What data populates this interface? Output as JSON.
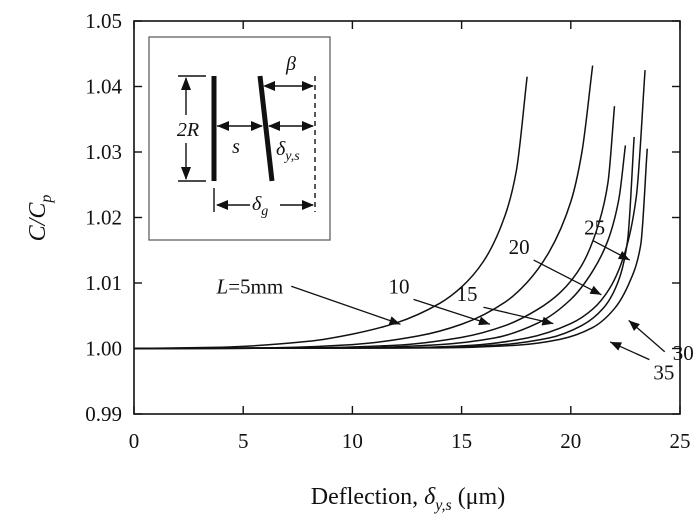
{
  "chart_data": {
    "type": "line",
    "xlabel": {
      "main": "Deflection, ",
      "sym": "δ",
      "sub": "y,s",
      "unit": " (μm)"
    },
    "ylabel": {
      "main": "C/C",
      "sub": "p"
    },
    "xlim": [
      0,
      25
    ],
    "ylim": [
      0.99,
      1.05
    ],
    "xticks": [
      "0",
      "5",
      "10",
      "15",
      "20",
      "25"
    ],
    "yticks": [
      "0.99",
      "1.00",
      "1.01",
      "1.02",
      "1.03",
      "1.04",
      "1.05"
    ],
    "grid": false,
    "series": [
      {
        "label": "L=5mm",
        "x": [
          0,
          4,
          8,
          10,
          12,
          14,
          15,
          16,
          17,
          17.5,
          18.0
        ],
        "y": [
          1.0,
          1.0002,
          1.0011,
          1.0022,
          1.0039,
          1.0069,
          1.0094,
          1.0133,
          1.0204,
          1.027,
          1.0415
        ]
      },
      {
        "label": "10",
        "x": [
          0,
          6,
          10,
          13,
          15,
          17,
          18,
          19,
          20,
          20.5,
          21.0
        ],
        "y": [
          1.0,
          1.0001,
          1.0006,
          1.0019,
          1.0037,
          1.0071,
          1.0101,
          1.0147,
          1.0224,
          1.0298,
          1.0432
        ]
      },
      {
        "label": "15",
        "x": [
          0,
          8,
          12,
          15,
          17,
          18.5,
          19.5,
          20.5,
          21.3,
          21.7,
          22.0
        ],
        "y": [
          1.0,
          1.0001,
          1.0005,
          1.0017,
          1.0035,
          1.006,
          1.0085,
          1.0127,
          1.0193,
          1.0253,
          1.037
        ]
      },
      {
        "label": "20",
        "x": [
          0,
          10,
          14,
          16.5,
          18.5,
          20,
          21,
          21.7,
          22.2,
          22.5
        ],
        "y": [
          1.0,
          1.0001,
          1.0006,
          1.0016,
          1.0039,
          1.0075,
          1.0118,
          1.0165,
          1.0228,
          1.031
        ]
      },
      {
        "label": "25",
        "x": [
          0,
          12,
          15.5,
          18,
          20,
          21,
          21.8,
          22.5,
          23.0,
          23.4
        ],
        "y": [
          1.0,
          1.0001,
          1.0005,
          1.0016,
          1.0038,
          1.006,
          1.0093,
          1.0149,
          1.0232,
          1.0425
        ]
      },
      {
        "label": "30",
        "x": [
          0,
          13,
          16.5,
          19,
          20.5,
          21.5,
          22.2,
          22.6,
          22.9
        ],
        "y": [
          1.0,
          1.0001,
          1.0005,
          1.0016,
          1.0035,
          1.0062,
          1.0105,
          1.0165,
          1.0323
        ]
      },
      {
        "label": "35",
        "x": [
          0,
          14,
          17.5,
          19.5,
          21,
          22,
          22.7,
          23.2,
          23.5
        ],
        "y": [
          1.0,
          1.0001,
          1.0005,
          1.0014,
          1.0032,
          1.0061,
          1.0102,
          1.0158,
          1.0305
        ]
      }
    ],
    "annotations": [
      {
        "text": "L=5mm",
        "ref": "series_0",
        "tail": [
          7.2,
          1.0095
        ],
        "head": [
          12.2,
          1.0037
        ]
      },
      {
        "text": "10",
        "ref": "series_1",
        "tail": [
          12.8,
          1.0075
        ],
        "head": [
          16.3,
          1.0037
        ]
      },
      {
        "text": "15",
        "ref": "series_2",
        "tail": [
          16.0,
          1.0063
        ],
        "head": [
          19.2,
          1.0038
        ]
      },
      {
        "text": "20",
        "ref": "series_3",
        "tail": [
          18.3,
          1.0135
        ],
        "head": [
          21.4,
          1.0082
        ]
      },
      {
        "text": "25",
        "ref": "series_4",
        "tail": [
          21.0,
          1.0165
        ],
        "head": [
          22.7,
          1.0135
        ]
      },
      {
        "text": "30",
        "ref": "series_5",
        "tail": [
          24.3,
          0.9995
        ],
        "head": [
          22.65,
          1.0043
        ]
      },
      {
        "text": "35",
        "ref": "series_6",
        "tail": [
          23.6,
          0.9983
        ],
        "head": [
          21.8,
          1.001
        ]
      }
    ],
    "inset": {
      "labels": {
        "twoR": "2R",
        "s": "s",
        "beta": "β",
        "delta_g": "δ",
        "delta_g_sub": "g",
        "delta_ys": "δ",
        "delta_ys_sub": "y,s"
      }
    }
  }
}
